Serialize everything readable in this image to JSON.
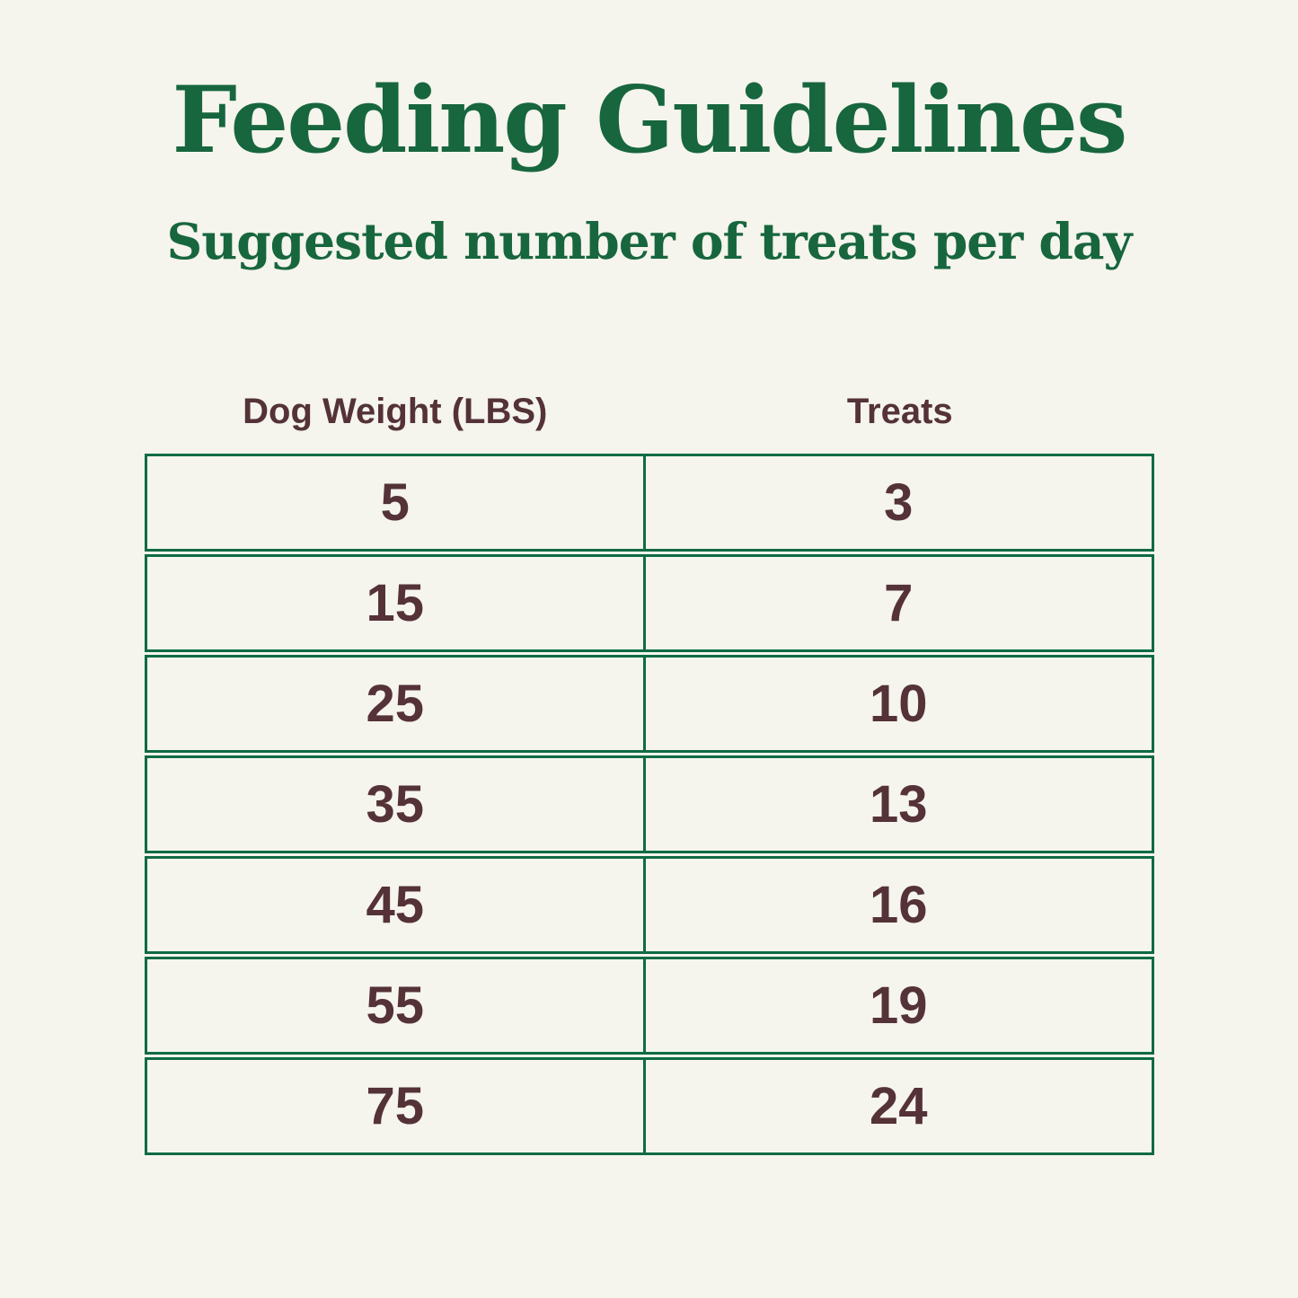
{
  "title": "Feeding Guidelines",
  "subtitle": "Suggested number of treats per day",
  "table": {
    "columns": {
      "weight": "Dog Weight (LBS)",
      "treats": "Treats"
    },
    "rows": [
      {
        "weight": "5",
        "treats": "3"
      },
      {
        "weight": "15",
        "treats": "7"
      },
      {
        "weight": "25",
        "treats": "10"
      },
      {
        "weight": "35",
        "treats": "13"
      },
      {
        "weight": "45",
        "treats": "16"
      },
      {
        "weight": "55",
        "treats": "19"
      },
      {
        "weight": "75",
        "treats": "24"
      }
    ]
  },
  "colors": {
    "background": "#F5F4ED",
    "title_green": "#17663E",
    "border_green": "#0F6B43",
    "text_brown": "#543238"
  },
  "chart_data": {
    "type": "table",
    "title": "Feeding Guidelines",
    "subtitle": "Suggested number of treats per day",
    "columns": [
      "Dog Weight (LBS)",
      "Treats"
    ],
    "rows": [
      [
        5,
        3
      ],
      [
        15,
        7
      ],
      [
        25,
        10
      ],
      [
        35,
        13
      ],
      [
        45,
        16
      ],
      [
        55,
        19
      ],
      [
        75,
        24
      ]
    ]
  }
}
